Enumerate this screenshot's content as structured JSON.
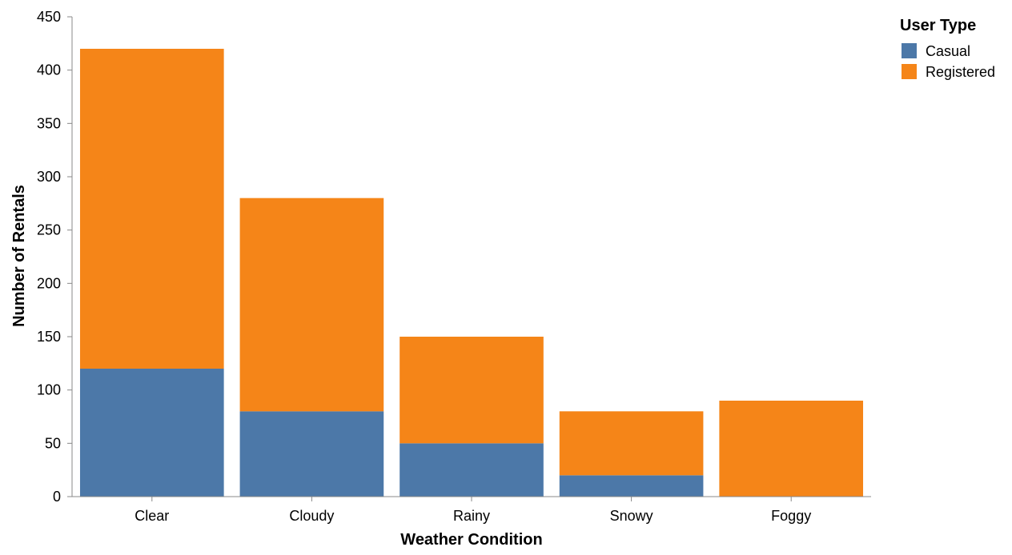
{
  "chart_data": {
    "type": "bar",
    "stacked": true,
    "categories": [
      "Clear",
      "Cloudy",
      "Rainy",
      "Snowy",
      "Foggy"
    ],
    "series": [
      {
        "name": "Casual",
        "values": [
          120,
          80,
          50,
          20,
          0
        ],
        "color": "#4c78a8"
      },
      {
        "name": "Registered",
        "values": [
          300,
          200,
          100,
          60,
          90
        ],
        "color": "#f58518"
      }
    ],
    "xlabel": "Weather Condition",
    "ylabel": "Number of Rentals",
    "ylim": [
      0,
      450
    ],
    "yticks": [
      0,
      50,
      100,
      150,
      200,
      250,
      300,
      350,
      400,
      450
    ],
    "grid": false,
    "legend": {
      "title": "User Type",
      "position": "top-right"
    }
  }
}
